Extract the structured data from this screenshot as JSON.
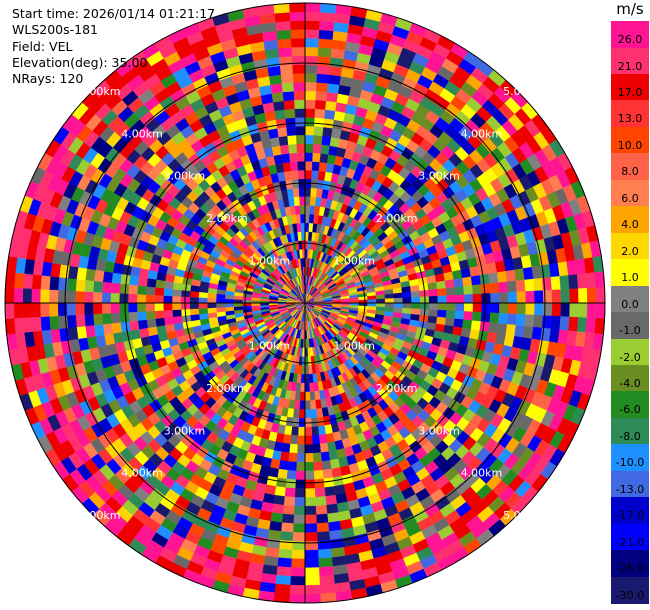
{
  "header": {
    "start_time": "Start time: 2026/01/14 01:21:17",
    "instrument": "WLS200s-181",
    "field": "Field: VEL",
    "elevation": "Elevation(deg): 35.00",
    "nrays": "NRays: 120"
  },
  "colorbar": {
    "unit": "m/s",
    "ticks": [
      "26.0",
      "21.0",
      "17.0",
      "13.0",
      "10.0",
      "8.0",
      "6.0",
      "4.0",
      "2.0",
      "1.0",
      "0.0",
      "-1.0",
      "-2.0",
      "-4.0",
      "-6.0",
      "-8.0",
      "-10.0",
      "-13.0",
      "-17.0",
      "-21.0",
      "-26.0",
      "-30.0"
    ],
    "colors": [
      "#ff1493",
      "#ff3070",
      "#ee0000",
      "#ff3333",
      "#ff4500",
      "#ff6347",
      "#ff7f50",
      "#ffa500",
      "#ffd700",
      "#ffff00",
      "#808080",
      "#696969",
      "#9acd32",
      "#6b8e23",
      "#228b22",
      "#2e8b57",
      "#1e90ff",
      "#4169e1",
      "#0000cd",
      "#0000ff",
      "#000080",
      "#191970"
    ]
  },
  "chart_data": {
    "type": "heatmap",
    "field": "VEL",
    "units": "m/s",
    "nrays": 120,
    "elevation_deg": 35.0,
    "range_rings": [
      "1.00km",
      "2.00km",
      "3.00km",
      "4.00km",
      "5.00km"
    ],
    "value_range": [
      -30.0,
      26.0
    ]
  }
}
